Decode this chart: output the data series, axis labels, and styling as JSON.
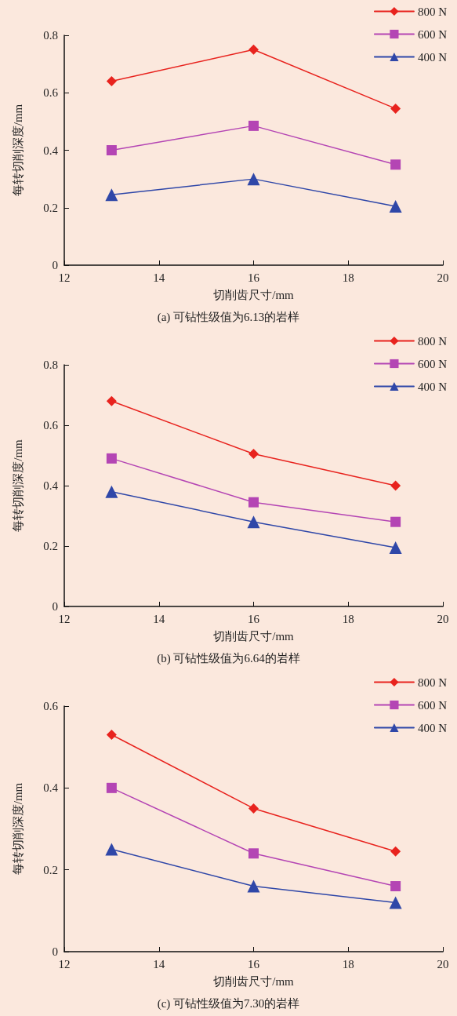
{
  "chart_data": [
    {
      "type": "line",
      "title": "(a) 可钻性级值为6.13的岩样",
      "xlabel": "切削齿尺寸/mm",
      "ylabel": "每转切削深度/mm",
      "x": [
        13,
        16,
        19
      ],
      "xlim": [
        12,
        20
      ],
      "xticks": [
        12,
        14,
        16,
        18,
        20
      ],
      "ylim": [
        0,
        0.8
      ],
      "yticks": [
        0,
        0.2,
        0.4,
        0.6,
        0.8
      ],
      "grid": false,
      "legend": "top right",
      "line_style": "solid",
      "series": [
        {
          "name": "800 N",
          "color": "#e8231e",
          "marker": "diamond",
          "values": [
            0.64,
            0.75,
            0.545
          ]
        },
        {
          "name": "600 N",
          "color": "#b445b4",
          "marker": "square",
          "values": [
            0.4,
            0.485,
            0.35
          ]
        },
        {
          "name": "400 N",
          "color": "#2f47a8",
          "marker": "triangle",
          "values": [
            0.245,
            0.3,
            0.205
          ]
        }
      ]
    },
    {
      "type": "line",
      "title": "(b) 可钻性级值为6.64的岩样",
      "xlabel": "切削齿尺寸/mm",
      "ylabel": "每转切削深度/mm",
      "x": [
        13,
        16,
        19
      ],
      "xlim": [
        12,
        20
      ],
      "xticks": [
        12,
        14,
        16,
        18,
        20
      ],
      "ylim": [
        0,
        0.8
      ],
      "yticks": [
        0,
        0.2,
        0.4,
        0.6,
        0.8
      ],
      "grid": false,
      "legend": "top right",
      "line_style": "solid",
      "series": [
        {
          "name": "800 N",
          "color": "#e8231e",
          "marker": "diamond",
          "values": [
            0.68,
            0.505,
            0.4
          ]
        },
        {
          "name": "600 N",
          "color": "#b445b4",
          "marker": "square",
          "values": [
            0.49,
            0.345,
            0.28
          ]
        },
        {
          "name": "400 N",
          "color": "#2f47a8",
          "marker": "triangle",
          "values": [
            0.38,
            0.28,
            0.195
          ]
        }
      ]
    },
    {
      "type": "line",
      "title": "(c) 可钻性级值为7.30的岩样",
      "xlabel": "切削齿尺寸/mm",
      "ylabel": "每转切削深度/mm",
      "x": [
        13,
        16,
        19
      ],
      "xlim": [
        12,
        20
      ],
      "xticks": [
        12,
        14,
        16,
        18,
        20
      ],
      "ylim": [
        0,
        0.6
      ],
      "yticks": [
        0,
        0.2,
        0.4,
        0.6
      ],
      "grid": false,
      "legend": "top right",
      "line_style": "solid",
      "series": [
        {
          "name": "800 N",
          "color": "#e8231e",
          "marker": "diamond",
          "values": [
            0.53,
            0.35,
            0.245
          ]
        },
        {
          "name": "600 N",
          "color": "#b445b4",
          "marker": "square",
          "values": [
            0.4,
            0.24,
            0.16
          ]
        },
        {
          "name": "400 N",
          "color": "#2f47a8",
          "marker": "triangle",
          "values": [
            0.25,
            0.16,
            0.12
          ]
        }
      ]
    }
  ]
}
